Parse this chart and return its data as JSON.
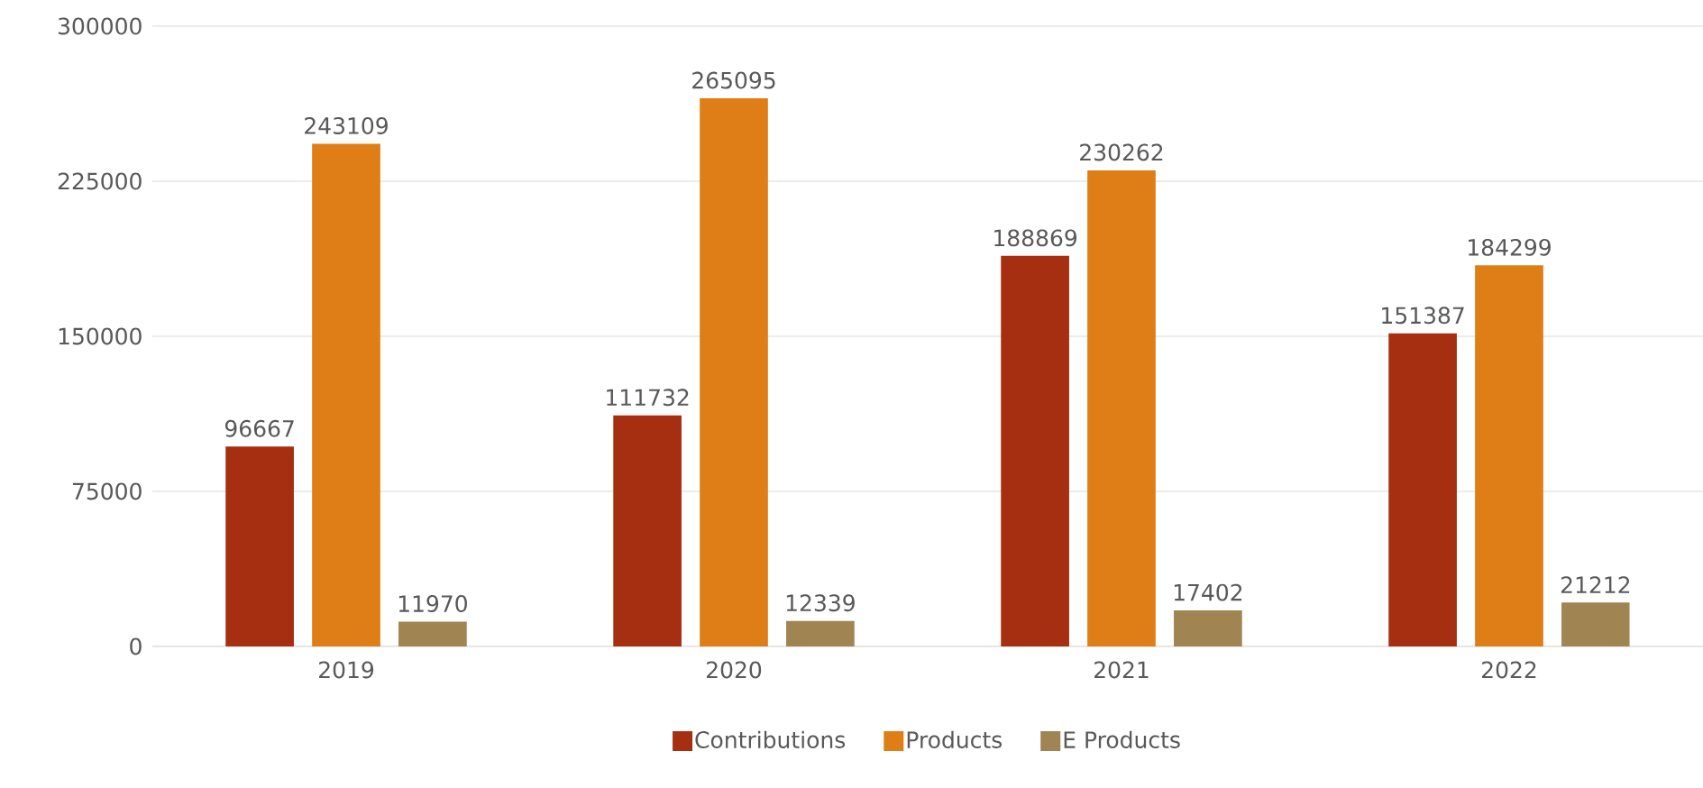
{
  "chart_data": {
    "type": "bar",
    "categories": [
      "2019",
      "2020",
      "2021",
      "2022"
    ],
    "series": [
      {
        "name": "Contributions",
        "color": "#a52f10",
        "values": [
          96667,
          111732,
          188869,
          151387
        ]
      },
      {
        "name": "Products",
        "color": "#df7e17",
        "values": [
          243109,
          265095,
          230262,
          184299
        ]
      },
      {
        "name": "E Products",
        "color": "#a08452",
        "values": [
          11970,
          12339,
          17402,
          21212
        ]
      }
    ],
    "ylim": [
      0,
      300000
    ],
    "yticks": [
      0,
      75000,
      150000,
      225000,
      300000
    ],
    "grid": "y",
    "legend": "bottom",
    "data_labels": true
  }
}
